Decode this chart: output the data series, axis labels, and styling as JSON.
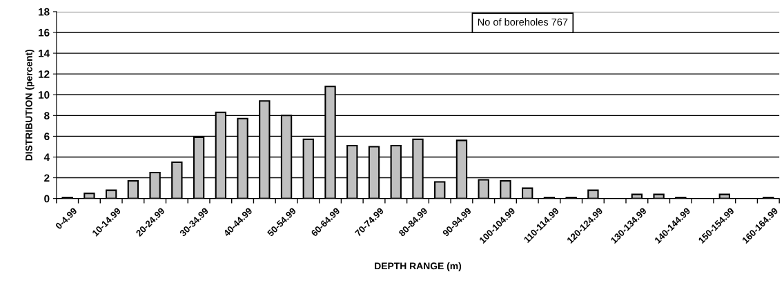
{
  "chart_data": {
    "type": "bar",
    "xlabel": "DEPTH RANGE (m)",
    "ylabel": "DISTRIBUTION (percent)",
    "categories": [
      "0-4.99",
      null,
      "10-14.99",
      null,
      "20-24.99",
      null,
      "30-34.99",
      null,
      "40-44.99",
      null,
      "50-54.99",
      null,
      "60-64.99",
      null,
      "70-74.99",
      null,
      "80-84.99",
      null,
      "90-94.99",
      null,
      "100-104.99",
      null,
      "110-114.99",
      null,
      "120-124.99",
      null,
      "130-134.99",
      null,
      "140-144.99",
      null,
      "150-154.99",
      null,
      "160-164.99"
    ],
    "values": [
      0.1,
      0.5,
      0.8,
      1.7,
      2.5,
      3.5,
      5.9,
      8.3,
      7.7,
      9.4,
      8.0,
      5.7,
      10.8,
      5.1,
      5.0,
      5.1,
      5.7,
      1.6,
      5.6,
      1.8,
      1.7,
      1.0,
      0.1,
      0.1,
      0.8,
      null,
      0.4,
      0.4,
      0.1,
      null,
      0.4,
      null,
      0.1
    ],
    "color": "#c0c0c0",
    "ylim": [
      0,
      18
    ],
    "yticks": [
      0,
      2,
      4,
      6,
      8,
      10,
      12,
      14,
      16,
      18
    ],
    "grid": "y",
    "legend": false,
    "annotations": [
      "No of boreholes 767"
    ]
  }
}
